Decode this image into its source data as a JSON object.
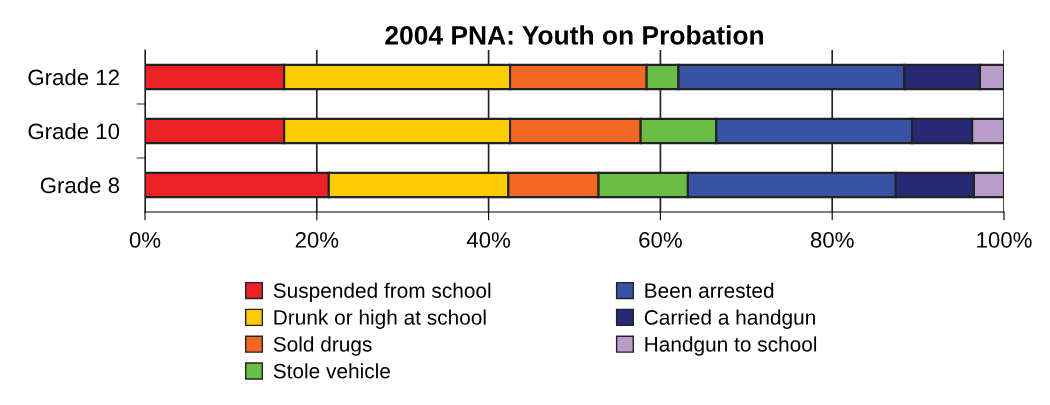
{
  "chart_data": {
    "type": "bar",
    "title": "2004 PNA: Youth on Probation",
    "orientation": "horizontal",
    "stacked": true,
    "categories": [
      "Grade 12",
      "Grade 10",
      "Grade 8"
    ],
    "series": [
      {
        "name": "Suspended from school",
        "color": "#ed2226",
        "values": [
          16.2,
          16.2,
          21.4
        ]
      },
      {
        "name": "Drunk or high at school",
        "color": "#fdcc06",
        "values": [
          26.3,
          26.3,
          20.9
        ]
      },
      {
        "name": "Sold drugs",
        "color": "#f26722",
        "values": [
          15.9,
          15.2,
          10.5
        ]
      },
      {
        "name": "Stole vehicle",
        "color": "#6abd45",
        "values": [
          3.7,
          8.8,
          10.4
        ]
      },
      {
        "name": "Been arrested",
        "color": "#3953a4",
        "values": [
          26.3,
          22.8,
          24.2
        ]
      },
      {
        "name": "Carried a handgun",
        "color": "#262a72",
        "values": [
          8.8,
          7.0,
          9.1
        ]
      },
      {
        "name": "Handgun to school",
        "color": "#b99cc9",
        "values": [
          2.8,
          3.7,
          3.5
        ]
      }
    ],
    "xlim": [
      0,
      100
    ],
    "xticks": [
      {
        "value": 0,
        "label": "0%"
      },
      {
        "value": 20,
        "label": "20%"
      },
      {
        "value": 40,
        "label": "40%"
      },
      {
        "value": 60,
        "label": "60%"
      },
      {
        "value": 80,
        "label": "80%"
      },
      {
        "value": 100,
        "label": "100%"
      }
    ],
    "grid": "x",
    "legend": "bottom"
  }
}
